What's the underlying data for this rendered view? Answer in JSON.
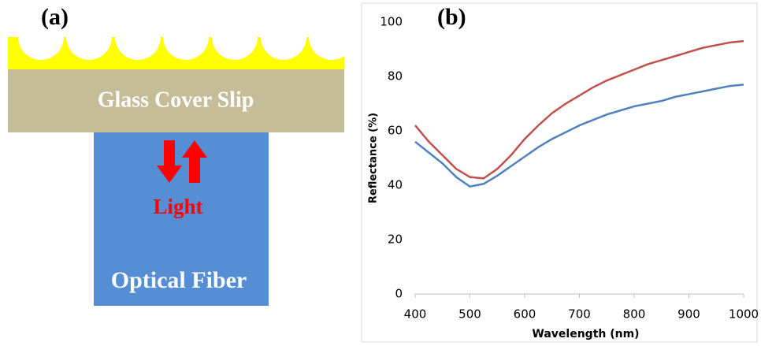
{
  "panel_a": {
    "label": "(a)",
    "slip_label": "Glass Cover Slip",
    "light_label": "Light",
    "fiber_label": "Optical Fiber"
  },
  "chart_data": {
    "type": "line",
    "label": "(b)",
    "x_label": "Wavelength (nm)",
    "y_label": "Reflectance (%)",
    "x": [
      400,
      425,
      450,
      475,
      500,
      525,
      550,
      575,
      600,
      625,
      650,
      675,
      700,
      725,
      750,
      775,
      800,
      825,
      850,
      875,
      900,
      925,
      950,
      975,
      1000
    ],
    "series": [
      {
        "color": "#c0504d",
        "values": [
          62,
          56,
          51,
          46,
          43,
          42.5,
          46,
          51,
          57,
          62,
          66.5,
          70,
          73,
          76,
          78.5,
          80.5,
          82.5,
          84.5,
          86,
          87.5,
          89,
          90.5,
          91.5,
          92.5,
          93
        ]
      },
      {
        "color": "#4f81bd",
        "values": [
          56,
          52,
          48,
          43,
          39.5,
          40.5,
          43.5,
          47,
          50.5,
          54,
          57,
          59.5,
          62,
          64,
          66,
          67.5,
          69,
          70,
          71,
          72.5,
          73.5,
          74.5,
          75.5,
          76.5,
          77
        ]
      }
    ],
    "xlim": [
      400,
      1000
    ],
    "xticks": [
      400,
      500,
      600,
      700,
      800,
      900,
      1000
    ],
    "ylim": [
      0,
      100
    ],
    "yticks": [
      0,
      20,
      40,
      60,
      80,
      100
    ]
  }
}
